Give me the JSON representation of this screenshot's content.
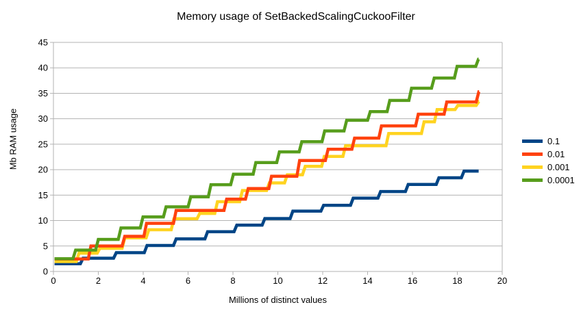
{
  "title": "Memory usage of SetBackedScalingCuckooFilter",
  "styles": {
    "background": "#ffffff",
    "grid_color": "#b3b3b3",
    "axis_color": "#b3b3b3",
    "text_color": "#000000"
  },
  "chart_data": {
    "type": "line",
    "style": "step",
    "title": "Memory usage of SetBackedScalingCuckooFilter",
    "xlabel": "Millions of distinct values",
    "ylabel": "Mb RAM usage",
    "xlim": [
      0,
      20
    ],
    "ylim": [
      0,
      45
    ],
    "x_ticks": [
      0,
      2,
      4,
      6,
      8,
      10,
      12,
      14,
      16,
      18,
      20
    ],
    "y_ticks": [
      0,
      5,
      10,
      15,
      20,
      25,
      30,
      35,
      40,
      45
    ],
    "grid": "horizontal",
    "legend_position": "right",
    "series": [
      {
        "name": "0.1",
        "color": "#004586",
        "start": [
          0.05,
          1.5
        ],
        "steps": [
          [
            1.2,
            2.6
          ],
          [
            2.68,
            3.7
          ],
          [
            4.05,
            5.1
          ],
          [
            5.35,
            6.4
          ],
          [
            6.75,
            7.8
          ],
          [
            8.05,
            9.1
          ],
          [
            9.3,
            10.4
          ],
          [
            10.55,
            11.85
          ],
          [
            11.92,
            13.0
          ],
          [
            13.24,
            14.4
          ],
          [
            14.46,
            15.7
          ],
          [
            15.69,
            17.1
          ],
          [
            17.06,
            18.4
          ],
          [
            18.18,
            19.7
          ]
        ],
        "end_x": 18.95
      },
      {
        "name": "0.01",
        "color": "#ff420e",
        "start": [
          0.05,
          2.45
        ],
        "steps": [
          [
            1.55,
            5.0
          ],
          [
            3.06,
            6.9
          ],
          [
            4.03,
            9.45
          ],
          [
            5.35,
            12.0
          ],
          [
            7.6,
            14.2
          ],
          [
            8.56,
            16.3
          ],
          [
            9.6,
            18.7
          ],
          [
            10.85,
            21.8
          ],
          [
            12.12,
            24.0
          ],
          [
            13.3,
            26.2
          ],
          [
            14.5,
            28.6
          ],
          [
            16.14,
            30.9
          ],
          [
            17.41,
            33.3
          ],
          [
            18.84,
            35.3
          ]
        ],
        "end_x": 18.97
      },
      {
        "name": "0.001",
        "color": "#ffd320",
        "start": [
          0.05,
          1.95
        ],
        "steps": [
          [
            1.02,
            3.6
          ],
          [
            1.95,
            4.55
          ],
          [
            3.06,
            6.6
          ],
          [
            4.13,
            8.2
          ],
          [
            5.25,
            10.35
          ],
          [
            6.4,
            11.4
          ],
          [
            7.19,
            13.7
          ],
          [
            8.3,
            15.9
          ],
          [
            9.5,
            17.4
          ],
          [
            10.3,
            19.0
          ],
          [
            11.1,
            20.65
          ],
          [
            11.95,
            22.6
          ],
          [
            12.9,
            24.7
          ],
          [
            14.82,
            27.1
          ],
          [
            16.4,
            29.4
          ],
          [
            16.98,
            31.8
          ],
          [
            17.9,
            32.6
          ],
          [
            18.84,
            33.4
          ]
        ],
        "end_x": 18.97
      },
      {
        "name": "0.0001",
        "color": "#579d1c",
        "start": [
          0.05,
          2.5
        ],
        "steps": [
          [
            0.87,
            4.2
          ],
          [
            1.88,
            6.3
          ],
          [
            2.89,
            8.55
          ],
          [
            3.87,
            10.7
          ],
          [
            4.9,
            12.7
          ],
          [
            6.0,
            14.65
          ],
          [
            6.9,
            17.05
          ],
          [
            7.9,
            19.1
          ],
          [
            8.9,
            21.4
          ],
          [
            9.95,
            23.5
          ],
          [
            10.95,
            25.5
          ],
          [
            11.97,
            27.6
          ],
          [
            12.95,
            29.7
          ],
          [
            14.0,
            31.4
          ],
          [
            14.87,
            33.6
          ],
          [
            15.84,
            36.0
          ],
          [
            16.85,
            38.0
          ],
          [
            17.87,
            40.3
          ],
          [
            18.82,
            41.7
          ]
        ],
        "end_x": 18.95
      }
    ]
  }
}
